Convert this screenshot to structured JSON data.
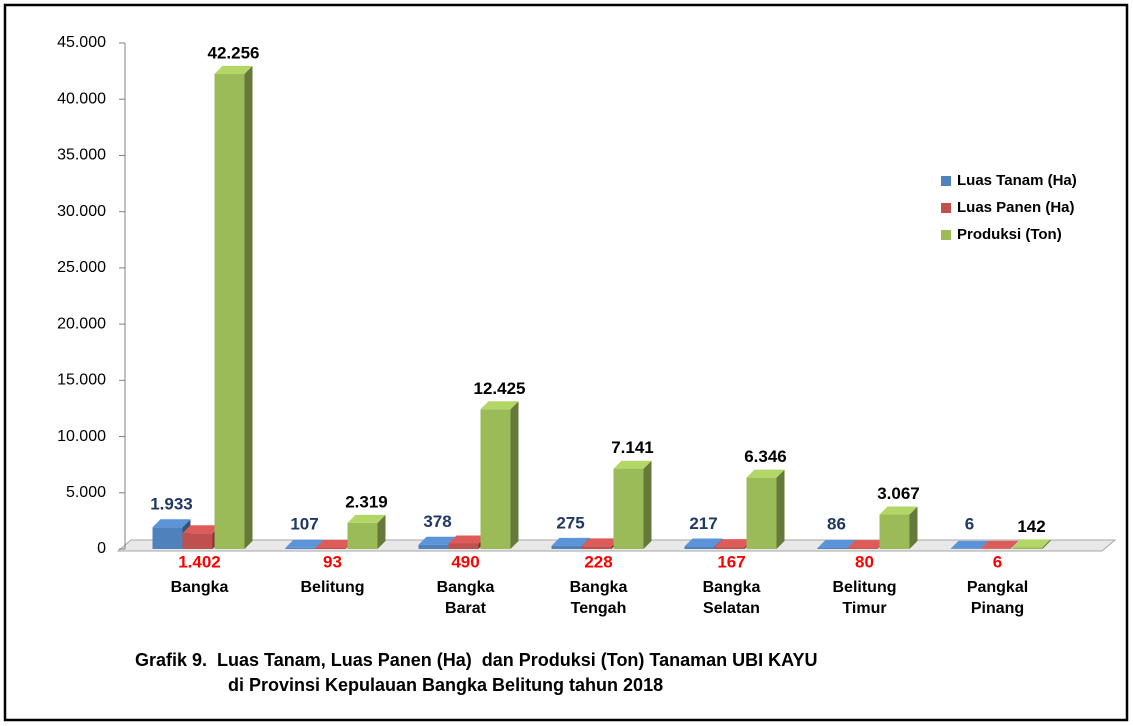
{
  "chart_data": {
    "type": "bar3d",
    "title": [
      "Grafik 9.  Luas Tanam, Luas Panen (Ha)  dan Produksi (Ton) Tanaman UBI KAYU",
      "di Provinsi Kepulauan Bangka Belitung tahun 2018"
    ],
    "categories": [
      "Bangka",
      "Belitung",
      "Bangka Barat",
      "Bangka Tengah",
      "Bangka Selatan",
      "Belitung Timur",
      "Pangkal Pinang"
    ],
    "series": [
      {
        "name": "Luas Tanam (Ha)",
        "color": "#4f81bd",
        "label_color": "#1f3864",
        "values": [
          1933,
          107,
          378,
          275,
          217,
          86,
          6
        ],
        "value_labels": [
          "1.933",
          "107",
          "378",
          "275",
          "217",
          "86",
          "6"
        ]
      },
      {
        "name": "Luas Panen (Ha)",
        "color": "#c0504d",
        "label_color": "#ff0000",
        "values": [
          1402,
          93,
          490,
          228,
          167,
          80,
          6
        ],
        "value_labels": [
          "1.402",
          "93",
          "490",
          "228",
          "167",
          "80",
          "6"
        ]
      },
      {
        "name": "Produksi (Ton)",
        "color": "#9bbb59",
        "label_color": "#000000",
        "values": [
          42256,
          2319,
          12425,
          7141,
          6346,
          3067,
          142
        ],
        "value_labels": [
          "42.256",
          "2.319",
          "12.425",
          "7.141",
          "6.346",
          "3.067",
          "142"
        ]
      }
    ],
    "ylim": [
      0,
      45000
    ],
    "yticks": [
      0,
      {
        "value": 5000,
        "label": "5.000"
      },
      {
        "value": 10000,
        "label": "10.000"
      },
      {
        "value": 15000,
        "label": "15.000"
      },
      {
        "value": 20000,
        "label": "20.000"
      },
      {
        "value": 25000,
        "label": "25.000"
      },
      {
        "value": 30000,
        "label": "30.000"
      },
      {
        "value": 35000,
        "label": "35.000"
      },
      {
        "value": 40000,
        "label": "40.000"
      },
      {
        "value": 45000,
        "label": "45.000"
      }
    ],
    "legend": "right"
  }
}
